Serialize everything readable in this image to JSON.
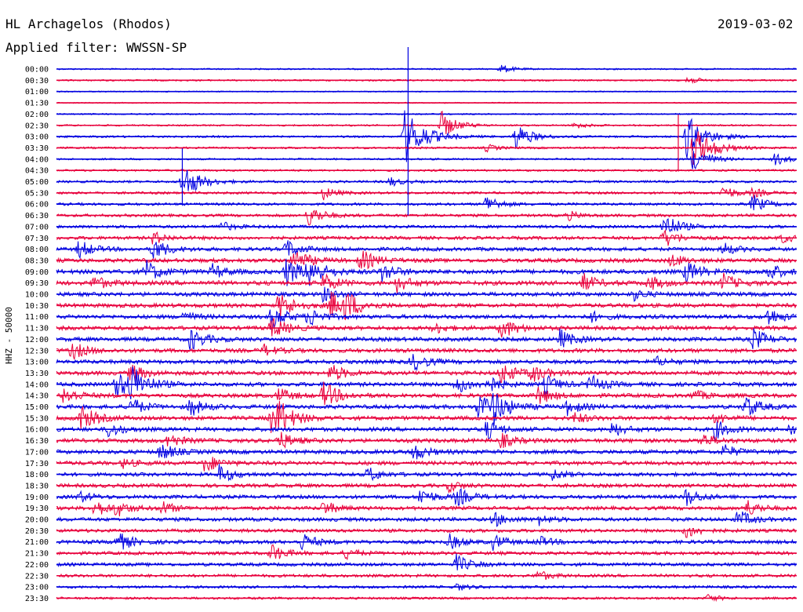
{
  "header": {
    "station": "HL Archagelos (Rhodos)",
    "date": "2019-03-02",
    "filter": "Applied filter: WWSSN-SP"
  },
  "chart_data": {
    "type": "line",
    "title": "HL Archagelos (Rhodos)",
    "subtitle": "Applied filter: WWSSN-SP",
    "ylabel": "HHZ - 50000",
    "xlabel": "",
    "grid": false,
    "legend": "none",
    "series_colors": [
      "#0000e0",
      "#e8003c"
    ],
    "rows": [
      {
        "label": "00:00",
        "level": 0.15,
        "events": [
          [
            0.6,
            0.5
          ]
        ]
      },
      {
        "label": "00:30",
        "level": 0.2,
        "events": [
          [
            0.85,
            0.5
          ]
        ]
      },
      {
        "label": "01:00",
        "level": 0.05,
        "events": []
      },
      {
        "label": "01:30",
        "level": 0.05,
        "events": []
      },
      {
        "label": "02:00",
        "level": 0.15,
        "events": []
      },
      {
        "label": "02:30",
        "level": 0.2,
        "events": [
          [
            0.52,
            1.5
          ],
          [
            0.7,
            0.4
          ]
        ]
      },
      {
        "label": "03:00",
        "level": 0.3,
        "events": [
          [
            0.47,
            3.0
          ],
          [
            0.62,
            1.5
          ],
          [
            0.85,
            2.5
          ]
        ]
      },
      {
        "label": "03:30",
        "level": 0.3,
        "events": [
          [
            0.58,
            0.4
          ],
          [
            0.86,
            2.5
          ]
        ]
      },
      {
        "label": "04:00",
        "level": 0.25,
        "events": [
          [
            0.86,
            1.5
          ],
          [
            0.97,
            0.7
          ]
        ]
      },
      {
        "label": "04:30",
        "level": 0.3,
        "events": []
      },
      {
        "label": "05:00",
        "level": 0.4,
        "events": [
          [
            0.17,
            2.0
          ],
          [
            0.45,
            0.5
          ]
        ]
      },
      {
        "label": "05:30",
        "level": 0.45,
        "events": [
          [
            0.36,
            0.7
          ],
          [
            0.9,
            0.8
          ],
          [
            0.94,
            0.5
          ]
        ]
      },
      {
        "label": "06:00",
        "level": 0.5,
        "events": [
          [
            0.58,
            1.0
          ],
          [
            0.94,
            1.0
          ]
        ]
      },
      {
        "label": "06:30",
        "level": 0.55,
        "events": [
          [
            0.34,
            1.2
          ],
          [
            0.69,
            0.5
          ]
        ]
      },
      {
        "label": "07:00",
        "level": 0.6,
        "events": [
          [
            0.22,
            0.6
          ],
          [
            0.82,
            1.5
          ]
        ]
      },
      {
        "label": "07:30",
        "level": 0.7,
        "events": [
          [
            0.13,
            0.7
          ],
          [
            0.82,
            1.0
          ],
          [
            0.98,
            0.5
          ]
        ]
      },
      {
        "label": "08:00",
        "level": 0.8,
        "events": [
          [
            0.03,
            1.0
          ],
          [
            0.13,
            1.2
          ],
          [
            0.31,
            1.0
          ],
          [
            0.9,
            0.7
          ]
        ]
      },
      {
        "label": "08:30",
        "level": 0.9,
        "events": [
          [
            0.32,
            1.3
          ],
          [
            0.41,
            1.2
          ],
          [
            0.83,
            0.7
          ]
        ]
      },
      {
        "label": "09:00",
        "level": 1.0,
        "events": [
          [
            0.12,
            1.2
          ],
          [
            0.21,
            0.8
          ],
          [
            0.31,
            1.5
          ],
          [
            0.34,
            1.5
          ],
          [
            0.44,
            1.0
          ],
          [
            0.85,
            1.2
          ],
          [
            0.96,
            1.0
          ]
        ]
      },
      {
        "label": "09:30",
        "level": 1.0,
        "events": [
          [
            0.05,
            0.8
          ],
          [
            0.36,
            1.0
          ],
          [
            0.46,
            0.9
          ],
          [
            0.71,
            1.0
          ],
          [
            0.8,
            0.8
          ],
          [
            0.9,
            1.0
          ]
        ]
      },
      {
        "label": "10:00",
        "level": 0.9,
        "events": [
          [
            0.36,
            0.8
          ],
          [
            0.78,
            0.6
          ]
        ]
      },
      {
        "label": "10:30",
        "level": 0.9,
        "events": [
          [
            0.3,
            1.5
          ],
          [
            0.37,
            1.5
          ],
          [
            0.39,
            1.3
          ]
        ]
      },
      {
        "label": "11:00",
        "level": 0.9,
        "events": [
          [
            0.17,
            0.6
          ],
          [
            0.29,
            1.3
          ],
          [
            0.34,
            1.0
          ],
          [
            0.72,
            0.6
          ],
          [
            0.96,
            1.0
          ]
        ]
      },
      {
        "label": "11:30",
        "level": 0.9,
        "events": [
          [
            0.29,
            1.2
          ],
          [
            0.51,
            0.6
          ],
          [
            0.6,
            1.2
          ]
        ]
      },
      {
        "label": "12:00",
        "level": 0.9,
        "events": [
          [
            0.18,
            1.2
          ],
          [
            0.68,
            1.0
          ],
          [
            0.94,
            1.2
          ]
        ]
      },
      {
        "label": "12:30",
        "level": 0.9,
        "events": [
          [
            0.02,
            1.0
          ],
          [
            0.28,
            0.6
          ]
        ]
      },
      {
        "label": "13:00",
        "level": 0.9,
        "events": [
          [
            0.48,
            1.0
          ],
          [
            0.81,
            0.5
          ]
        ]
      },
      {
        "label": "13:30",
        "level": 0.9,
        "events": [
          [
            0.1,
            1.0
          ],
          [
            0.37,
            1.0
          ],
          [
            0.6,
            1.2
          ],
          [
            0.64,
            1.0
          ]
        ]
      },
      {
        "label": "14:00",
        "level": 0.9,
        "events": [
          [
            0.08,
            1.5
          ],
          [
            0.1,
            1.8
          ],
          [
            0.54,
            1.0
          ],
          [
            0.58,
            1.0
          ],
          [
            0.66,
            1.0
          ],
          [
            0.72,
            1.0
          ]
        ]
      },
      {
        "label": "14:30",
        "level": 0.9,
        "events": [
          [
            0.01,
            1.0
          ],
          [
            0.3,
            0.8
          ],
          [
            0.36,
            1.5
          ],
          [
            0.65,
            1.0
          ],
          [
            0.86,
            0.6
          ]
        ]
      },
      {
        "label": "15:00",
        "level": 0.9,
        "events": [
          [
            0.1,
            1.0
          ],
          [
            0.18,
            1.0
          ],
          [
            0.57,
            1.5
          ],
          [
            0.59,
            1.5
          ],
          [
            0.69,
            0.8
          ],
          [
            0.93,
            1.2
          ]
        ]
      },
      {
        "label": "15:30",
        "level": 0.9,
        "events": [
          [
            0.03,
            1.5
          ],
          [
            0.29,
            1.5
          ],
          [
            0.3,
            1.2
          ],
          [
            0.7,
            0.6
          ],
          [
            0.89,
            0.6
          ]
        ]
      },
      {
        "label": "16:00",
        "level": 0.9,
        "events": [
          [
            0.07,
            0.8
          ],
          [
            0.58,
            1.0
          ],
          [
            0.75,
            0.8
          ],
          [
            0.89,
            1.0
          ],
          [
            0.99,
            0.8
          ]
        ]
      },
      {
        "label": "16:30",
        "level": 0.9,
        "events": [
          [
            0.15,
            0.8
          ],
          [
            0.3,
            1.0
          ],
          [
            0.6,
            0.8
          ],
          [
            0.87,
            0.8
          ]
        ]
      },
      {
        "label": "17:00",
        "level": 0.9,
        "events": [
          [
            0.14,
            1.0
          ],
          [
            0.48,
            1.0
          ],
          [
            0.9,
            0.8
          ]
        ]
      },
      {
        "label": "17:30",
        "level": 0.9,
        "events": [
          [
            0.2,
            1.0
          ],
          [
            0.09,
            0.5
          ]
        ]
      },
      {
        "label": "18:00",
        "level": 0.8,
        "events": [
          [
            0.22,
            1.0
          ],
          [
            0.42,
            0.8
          ],
          [
            0.67,
            0.6
          ]
        ]
      },
      {
        "label": "18:30",
        "level": 0.8,
        "events": [
          [
            0.53,
            0.6
          ]
        ]
      },
      {
        "label": "19:00",
        "level": 0.8,
        "events": [
          [
            0.03,
            0.6
          ],
          [
            0.49,
            1.0
          ],
          [
            0.54,
            1.0
          ],
          [
            0.85,
            1.0
          ]
        ]
      },
      {
        "label": "19:30",
        "level": 0.8,
        "events": [
          [
            0.05,
            1.0
          ],
          [
            0.08,
            0.8
          ],
          [
            0.14,
            0.8
          ],
          [
            0.36,
            0.8
          ],
          [
            0.93,
            1.0
          ]
        ]
      },
      {
        "label": "20:00",
        "level": 0.8,
        "events": [
          [
            0.59,
            0.8
          ],
          [
            0.65,
            0.6
          ],
          [
            0.92,
            1.0
          ]
        ]
      },
      {
        "label": "20:30",
        "level": 0.7,
        "events": [
          [
            0.85,
            0.8
          ]
        ]
      },
      {
        "label": "21:00",
        "level": 0.8,
        "events": [
          [
            0.08,
            1.2
          ],
          [
            0.33,
            1.0
          ],
          [
            0.53,
            0.8
          ],
          [
            0.59,
            0.8
          ],
          [
            0.65,
            0.6
          ]
        ]
      },
      {
        "label": "21:30",
        "level": 0.7,
        "events": [
          [
            0.29,
            1.0
          ],
          [
            0.39,
            0.6
          ]
        ]
      },
      {
        "label": "22:00",
        "level": 0.7,
        "events": [
          [
            0.54,
            1.0
          ]
        ]
      },
      {
        "label": "22:30",
        "level": 0.6,
        "events": [
          [
            0.65,
            0.6
          ]
        ]
      },
      {
        "label": "23:00",
        "level": 0.5,
        "events": [
          [
            0.54,
            0.4
          ]
        ]
      },
      {
        "label": "23:30",
        "level": 0.4,
        "events": [
          [
            0.88,
            0.4
          ]
        ]
      }
    ],
    "spikes": [
      {
        "x": 0.475,
        "from_row": 0,
        "to_row": 13,
        "color": "#0000e0"
      },
      {
        "x": 0.84,
        "from_row": 6,
        "to_row": 9,
        "color": "#e8003c"
      },
      {
        "x": 0.17,
        "from_row": 9,
        "to_row": 12,
        "color": "#0000e0"
      }
    ]
  }
}
